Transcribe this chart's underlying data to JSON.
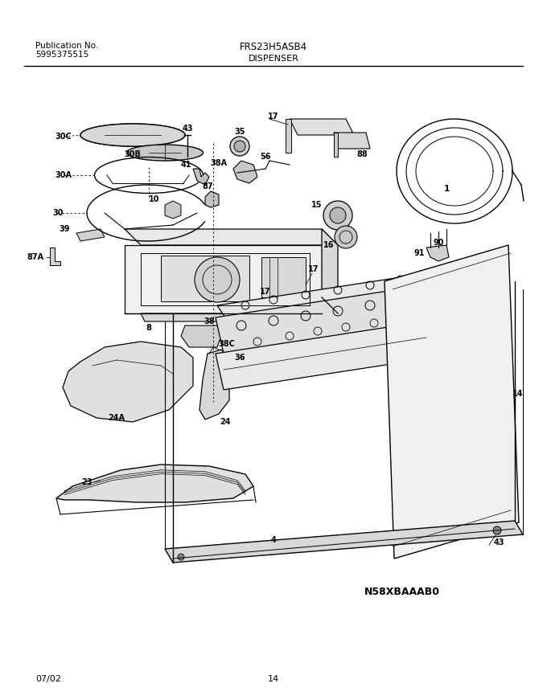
{
  "title_left_line1": "Publication No.",
  "title_left_line2": "5995375515",
  "title_center": "FRS23H5ASB4",
  "subtitle": "DISPENSER",
  "diagram_code": "N58XBAAAB0",
  "footer_left": "07/02",
  "footer_center": "14",
  "bg_color": "#ffffff",
  "text_color": "#000000",
  "line_color": "#000000",
  "figsize": [
    6.8,
    8.71
  ],
  "dpi": 100
}
